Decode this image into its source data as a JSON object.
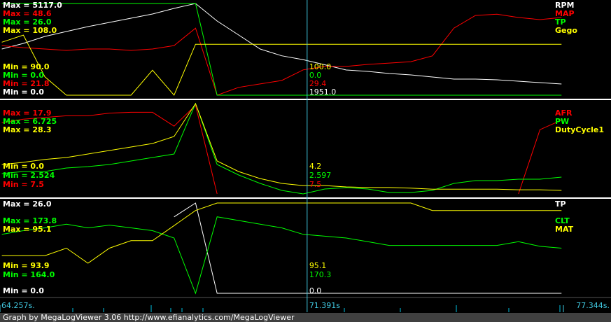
{
  "time_axis": {
    "xlim": [
      64.257,
      77.344
    ],
    "xticks": [
      {
        "value": 64.257,
        "label": "64.257s."
      },
      {
        "value": 77.344,
        "label": "77.344s."
      }
    ],
    "cursor": {
      "value": 71.391,
      "label": "71.391s"
    }
  },
  "chart_data": [
    {
      "type": "line",
      "x": [
        64.3,
        64.8,
        65.3,
        65.8,
        66.3,
        66.8,
        67.3,
        67.8,
        68.3,
        68.8,
        69.3,
        69.8,
        70.3,
        70.8,
        71.3,
        71.8,
        72.3,
        72.8,
        73.3,
        73.8,
        74.3,
        74.8,
        75.3,
        75.8,
        76.3,
        76.8,
        77.3
      ],
      "series": [
        {
          "name": "RPM",
          "color": "#ffffff",
          "ylim": [
            0,
            5117
          ],
          "max_label": "Max = 5117.0",
          "min_label": "Min = 0.0",
          "cursor_label": "1951.0",
          "values": [
            2578,
            2890,
            3281,
            3554,
            3828,
            4062,
            4297,
            4531,
            4844,
            5117,
            4141,
            3359,
            2578,
            2200,
            1980,
            1700,
            1406,
            1328,
            1211,
            1133,
            1016,
            898,
            898,
            859,
            781,
            703,
            625
          ]
        },
        {
          "name": "MAP",
          "color": "#ff0000",
          "ylim": [
            21.8,
            48.6
          ],
          "max_label": "Max = 48.6",
          "min_label": "Min = 21.8",
          "cursor_label": "29.4",
          "values": [
            36.3,
            35.7,
            35.3,
            34.9,
            35.3,
            35.3,
            34.9,
            35.3,
            36.3,
            41.4,
            21.8,
            24.1,
            25.1,
            26.1,
            29.2,
            30.2,
            30.2,
            30.8,
            31.2,
            31.6,
            33.3,
            41.4,
            45.1,
            45.5,
            44.5,
            43.9,
            44.5
          ]
        },
        {
          "name": "TP",
          "color": "#00ff00",
          "ylim": [
            0,
            26
          ],
          "max_label": "Max = 26.0",
          "min_label": "Min = 0.0",
          "cursor_label": "0.0",
          "values": [
            26,
            26,
            26,
            26,
            26,
            26,
            26,
            26,
            26,
            26,
            0,
            0,
            0,
            0,
            0,
            0,
            0,
            0,
            0,
            0,
            0,
            0,
            0,
            0,
            0,
            0,
            0
          ]
        },
        {
          "name": "Gego",
          "color": "#ffff00",
          "ylim": [
            90,
            108
          ],
          "max_label": "Max = 108.0",
          "min_label": "Min = 90.0",
          "cursor_label": "100.0",
          "values": [
            100.4,
            101.8,
            93.6,
            90,
            90,
            90,
            90,
            94.9,
            90,
            100,
            100,
            100,
            100,
            100,
            100,
            100,
            100,
            100,
            100,
            100,
            100,
            100,
            100,
            100,
            100,
            100,
            100
          ]
        }
      ]
    },
    {
      "type": "line",
      "x": [
        64.3,
        64.8,
        65.3,
        65.8,
        66.3,
        66.8,
        67.3,
        67.8,
        68.3,
        68.8,
        69.3,
        69.8,
        70.3,
        70.8,
        71.3,
        71.8,
        72.3,
        72.8,
        73.3,
        73.8,
        74.3,
        74.8,
        75.3,
        75.8,
        76.3,
        76.8,
        77.3
      ],
      "series": [
        {
          "name": "AFR",
          "color": "#ff0000",
          "ylim": [
            7.5,
            17.9
          ],
          "max_label": "Max = 17.9",
          "min_label": "Min = 7.5",
          "cursor_label": "7.5",
          "values": [
            15.7,
            16.1,
            16.3,
            16.5,
            16.5,
            16.8,
            16.9,
            16.9,
            15.3,
            17.7,
            7.5,
            null,
            null,
            null,
            null,
            null,
            null,
            null,
            null,
            null,
            null,
            null,
            null,
            null,
            7.5,
            14.9,
            16.0
          ]
        },
        {
          "name": "PW",
          "color": "#00ff00",
          "ylim": [
            2.524,
            6.725
          ],
          "max_label": "Max = 6.725",
          "min_label": "Min = 2.524",
          "cursor_label": "2.597",
          "values": [
            3.469,
            3.566,
            3.566,
            3.729,
            3.794,
            3.892,
            4.055,
            4.218,
            4.381,
            6.725,
            3.892,
            3.403,
            3.013,
            2.687,
            2.524,
            2.752,
            2.817,
            2.752,
            2.589,
            2.589,
            2.687,
            3.013,
            3.143,
            3.143,
            3.208,
            3.208,
            3.306
          ]
        },
        {
          "name": "DutyCycle1",
          "color": "#ffff00",
          "ylim": [
            0,
            28.3
          ],
          "max_label": "Max = 28.3",
          "min_label": "Min = 0.0",
          "cursor_label": "4.2",
          "values": [
            9.2,
            9.9,
            10.8,
            11.4,
            12.5,
            13.6,
            14.7,
            15.8,
            18.0,
            28.3,
            10.3,
            7.0,
            4.8,
            3.3,
            2.6,
            2.6,
            2.2,
            2.0,
            2.0,
            1.8,
            1.5,
            1.5,
            1.5,
            1.5,
            1.3,
            1.3,
            1.1
          ]
        }
      ]
    },
    {
      "type": "line",
      "x": [
        64.3,
        64.8,
        65.3,
        65.8,
        66.3,
        66.8,
        67.3,
        67.8,
        68.3,
        68.8,
        69.3,
        69.8,
        70.3,
        70.8,
        71.3,
        71.8,
        72.3,
        72.8,
        73.3,
        73.8,
        74.3,
        74.8,
        75.3,
        75.8,
        76.3,
        76.8,
        77.3
      ],
      "series": [
        {
          "name": "TP",
          "color": "#ffffff",
          "ylim": [
            0,
            26
          ],
          "max_label": "Max = 26.0",
          "min_label": "Min = 0.0",
          "cursor_label": "0.0",
          "values": [
            null,
            null,
            null,
            null,
            null,
            null,
            null,
            null,
            22,
            26,
            0,
            0,
            0,
            0,
            0,
            0,
            0,
            0,
            0,
            0,
            0,
            0,
            0,
            0,
            0,
            0,
            0
          ]
        },
        {
          "name": "CLT",
          "color": "#00ff00",
          "ylim": [
            164,
            173.8
          ],
          "max_label": "Max = 173.8",
          "min_label": "Min = 164.0",
          "cursor_label": "170.3",
          "values": [
            170.4,
            170.8,
            171.1,
            171.5,
            171.1,
            171.4,
            171.1,
            170.8,
            170.0,
            164.0,
            172.3,
            171.9,
            171.5,
            171.1,
            170.4,
            170.2,
            170.0,
            169.6,
            169.2,
            169.2,
            169.2,
            169.2,
            169.2,
            169.2,
            169.6,
            169.1,
            168.9
          ]
        },
        {
          "name": "MAT",
          "color": "#ffff00",
          "ylim": [
            93.9,
            95.1
          ],
          "max_label": "Max = 95.1",
          "min_label": "Min = 93.9",
          "cursor_label": "95.1",
          "values": [
            94.4,
            94.4,
            94.4,
            94.5,
            94.3,
            94.5,
            94.6,
            94.6,
            94.8,
            95.0,
            95.1,
            95.1,
            95.1,
            95.1,
            95.1,
            95.1,
            95.1,
            95.1,
            95.1,
            95.1,
            95.0,
            95.0,
            95.0,
            95.0,
            95.0,
            95.0,
            95.0
          ]
        }
      ]
    }
  ],
  "footer": "Graph by MegaLogViewer 3.06 http://www.efianalytics.com/MegaLogViewer"
}
